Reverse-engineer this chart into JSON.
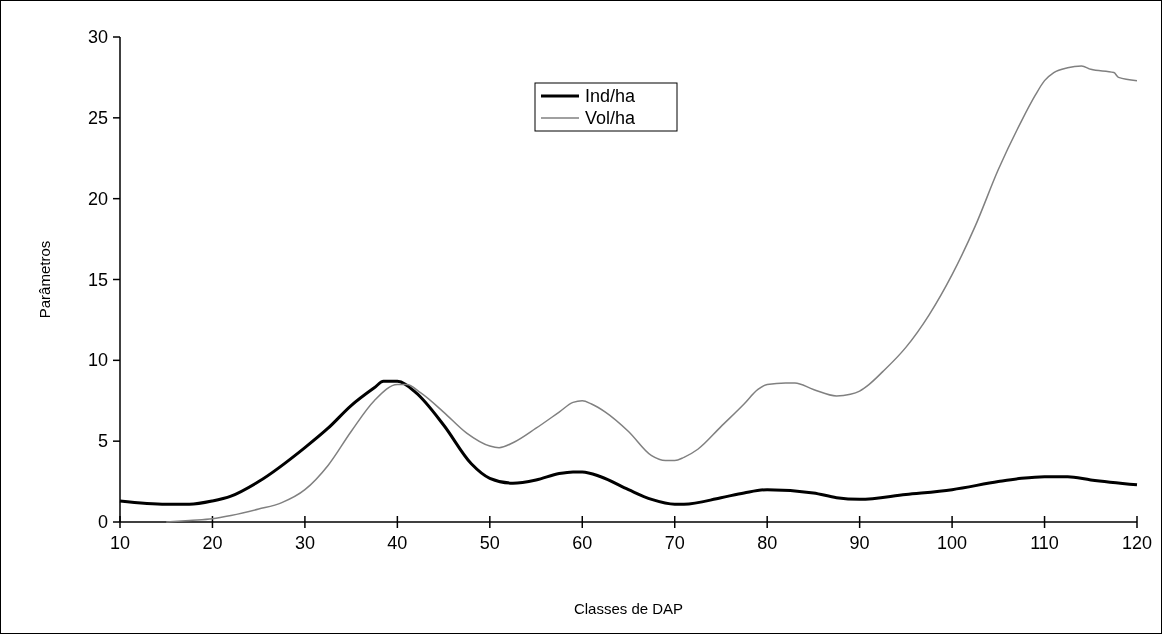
{
  "chart_data": {
    "type": "line",
    "xlabel": "Classes de DAP",
    "ylabel": "Parâmetros",
    "xlim": [
      10,
      120
    ],
    "xticks": [
      10,
      20,
      30,
      40,
      50,
      60,
      70,
      80,
      90,
      100,
      110,
      120
    ],
    "ylim": [
      0,
      30
    ],
    "yticks": [
      0,
      5,
      10,
      15,
      20,
      25,
      30
    ],
    "legend": "top",
    "grid": false,
    "series": [
      {
        "name": "Ind/ha",
        "color": "#000000",
        "x": [
          10,
          15,
          17.5,
          20,
          22,
          25,
          30,
          32.5,
          35,
          37.5,
          38.5,
          40,
          42,
          45,
          48,
          50,
          52.5,
          55,
          57.5,
          59,
          60,
          62,
          65,
          67.5,
          70,
          71,
          75,
          77.5,
          80,
          85,
          87.5,
          90,
          95,
          100,
          105,
          107.5,
          110,
          112.5,
          115,
          120
        ],
        "values": [
          1.3,
          1.1,
          1.1,
          1.3,
          1.6,
          2.5,
          4.6,
          5.8,
          7.2,
          8.3,
          8.7,
          8.7,
          8.0,
          6.0,
          3.6,
          2.7,
          2.4,
          2.6,
          3.0,
          3.1,
          3.1,
          2.8,
          2.0,
          1.4,
          1.1,
          1.1,
          1.5,
          1.8,
          2.0,
          1.8,
          1.5,
          1.4,
          1.7,
          2.0,
          2.5,
          2.7,
          2.8,
          2.8,
          2.6,
          2.3
        ]
      },
      {
        "name": "Vol/ha",
        "color": "#808080",
        "x": [
          15,
          17.5,
          20,
          22,
          25,
          27.5,
          30,
          32.5,
          35,
          37.5,
          40,
          41,
          42.5,
          45,
          47.5,
          50,
          51,
          52.5,
          55,
          57.5,
          59,
          60,
          61,
          62.5,
          65,
          67.5,
          69,
          70,
          71,
          72.5,
          75,
          77.5,
          79,
          80,
          82,
          83,
          85,
          87.5,
          89,
          90,
          91,
          92.5,
          95,
          97.5,
          100,
          102.5,
          105,
          107.5,
          109,
          110,
          111,
          112.5,
          114,
          115,
          117.5,
          118,
          120
        ],
        "values": [
          0,
          0.1,
          0.2,
          0.4,
          0.8,
          1.2,
          2.0,
          3.5,
          5.6,
          7.5,
          8.5,
          8.5,
          8.0,
          6.8,
          5.5,
          4.7,
          4.6,
          4.9,
          5.8,
          6.8,
          7.4,
          7.5,
          7.3,
          6.8,
          5.6,
          4.1,
          3.8,
          3.8,
          4.0,
          4.5,
          5.9,
          7.3,
          8.2,
          8.5,
          8.6,
          8.6,
          8.2,
          7.8,
          7.9,
          8.1,
          8.5,
          9.3,
          10.8,
          12.8,
          15.3,
          18.3,
          21.8,
          24.8,
          26.4,
          27.3,
          27.8,
          28.1,
          28.2,
          28.0,
          27.8,
          27.5,
          27.3
        ]
      }
    ]
  }
}
